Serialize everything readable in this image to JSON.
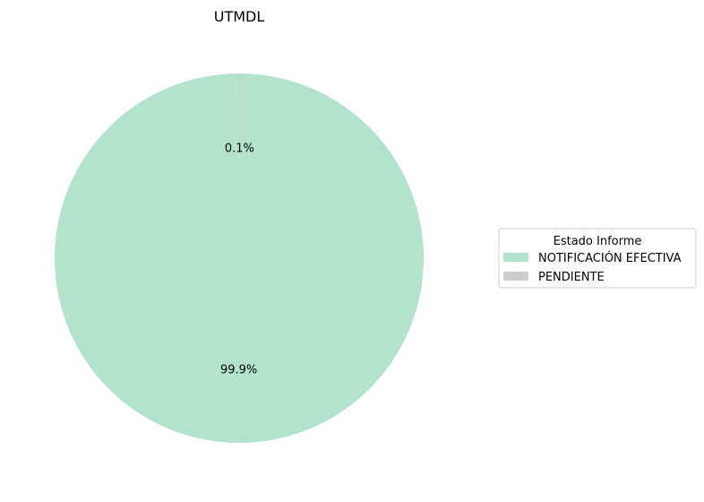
{
  "chart_data": {
    "type": "pie",
    "title": "UTMDL",
    "labels": [
      "NOTIFICACIÓN EFECTIVA",
      "PENDIENTE"
    ],
    "values": [
      99.9,
      0.1
    ],
    "value_labels": [
      "99.9%",
      "0.1%"
    ],
    "colors": [
      "#b3e2cd",
      "#cccccc"
    ],
    "start_angle_deg": 90,
    "direction": "counterclockwise",
    "legend": {
      "title": "Estado Informe",
      "placement": "center-right"
    }
  }
}
